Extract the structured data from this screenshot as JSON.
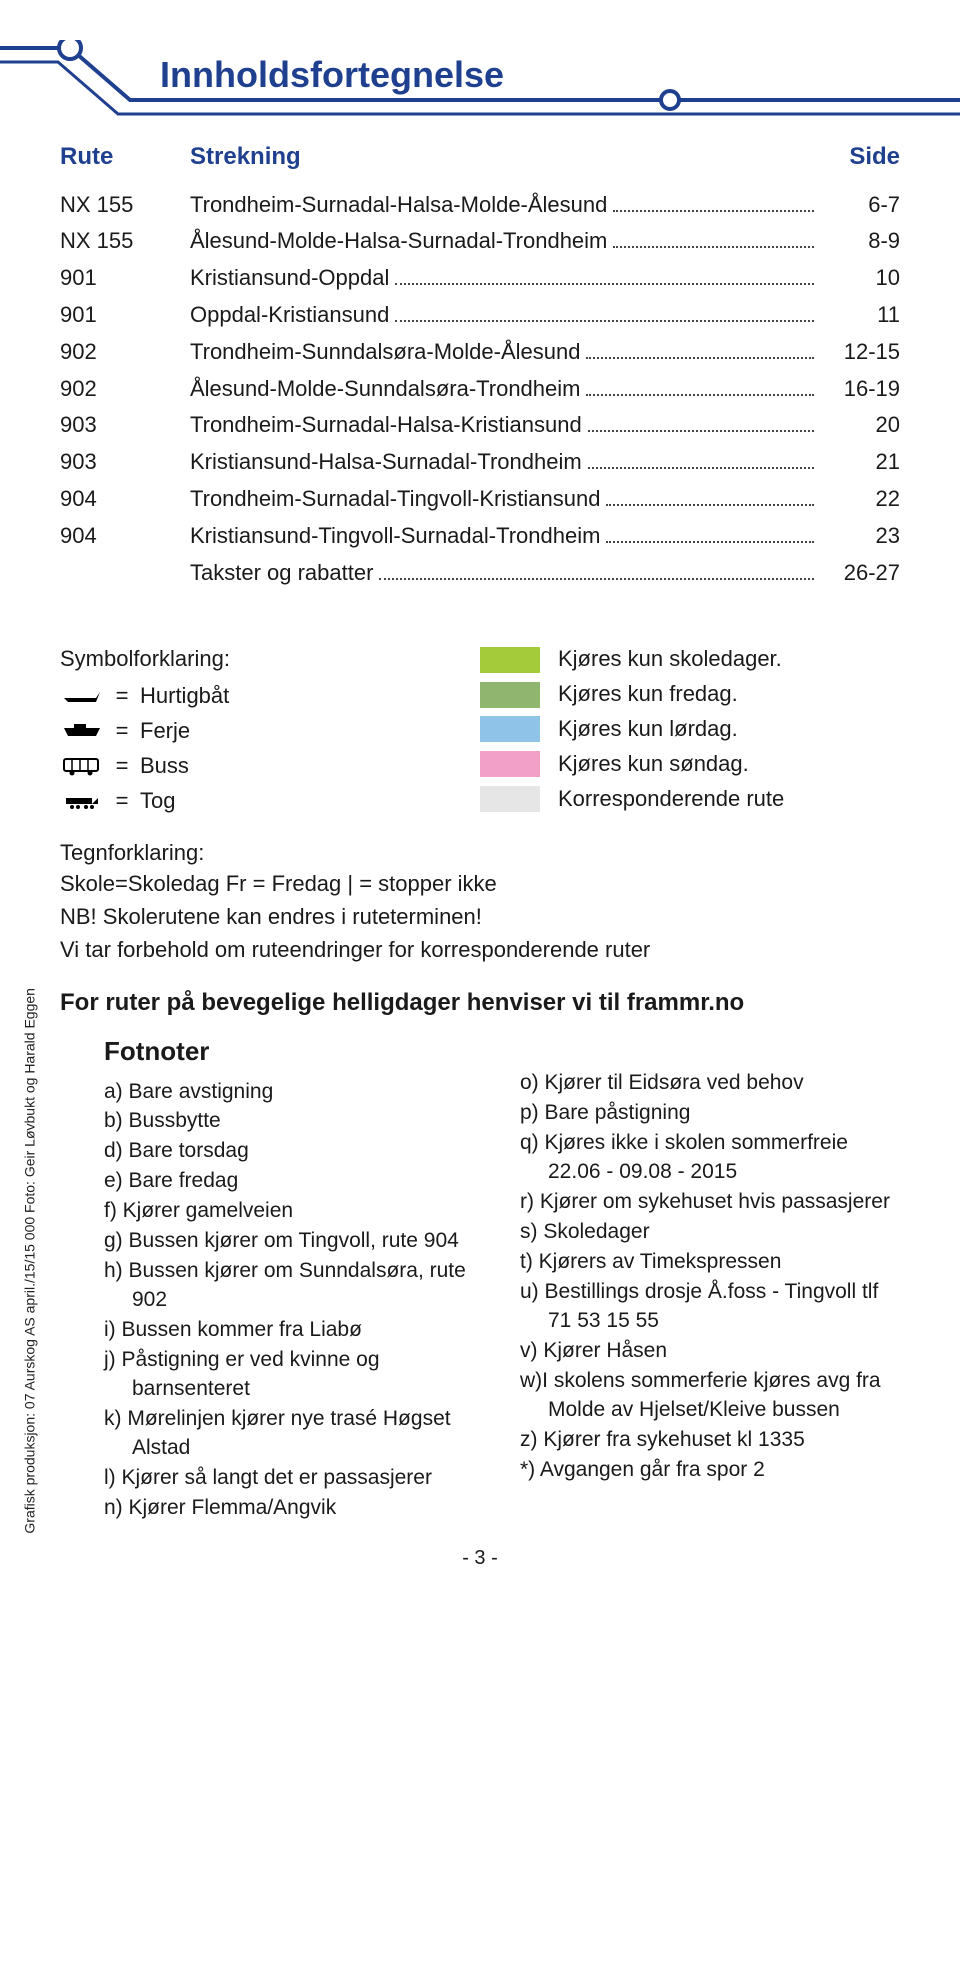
{
  "colors": {
    "brand_blue": "#1f3f8f",
    "text": "#1a1a1a",
    "swatch_schooldays": "#a4cc3a",
    "swatch_friday": "#8fb56e",
    "swatch_saturday": "#8fc3e8",
    "swatch_sunday": "#f2a0c8",
    "swatch_corresp": "#e6e6e6",
    "line_stroke": "#1f3f8f"
  },
  "header": {
    "title": "Innholdsfortegnelse"
  },
  "toc": {
    "columns": {
      "route": "Rute",
      "stretch": "Strekning",
      "page": "Side"
    },
    "rows": [
      {
        "route": "NX 155",
        "stretch": "Trondheim-Surnadal-Halsa-Molde-Ålesund",
        "page": "6-7"
      },
      {
        "route": "NX 155",
        "stretch": "Ålesund-Molde-Halsa-Surnadal-Trondheim",
        "page": "8-9"
      },
      {
        "route": "901",
        "stretch": "Kristiansund-Oppdal",
        "page": "10"
      },
      {
        "route": "901",
        "stretch": "Oppdal-Kristiansund",
        "page": "11"
      },
      {
        "route": "902",
        "stretch": "Trondheim-Sunndalsøra-Molde-Ålesund",
        "page": "12-15"
      },
      {
        "route": "902",
        "stretch": "Ålesund-Molde-Sunndalsøra-Trondheim",
        "page": "16-19"
      },
      {
        "route": "903",
        "stretch": "Trondheim-Surnadal-Halsa-Kristiansund",
        "page": "20"
      },
      {
        "route": "903",
        "stretch": "Kristiansund-Halsa-Surnadal-Trondheim",
        "page": "21"
      },
      {
        "route": "904",
        "stretch": "Trondheim-Surnadal-Tingvoll-Kristiansund",
        "page": "22"
      },
      {
        "route": "904",
        "stretch": "Kristiansund-Tingvoll-Surnadal-Trondheim",
        "page": "23"
      },
      {
        "route": "",
        "stretch": "Takster og rabatter",
        "page": "26-27"
      }
    ]
  },
  "symbolLegend": {
    "title": "Symbolforklaring:",
    "items": [
      {
        "icon": "boat",
        "label": "Hurtigbåt"
      },
      {
        "icon": "ferry",
        "label": "Ferje"
      },
      {
        "icon": "bus",
        "label": "Buss"
      },
      {
        "icon": "train",
        "label": "Tog"
      }
    ],
    "eq": "="
  },
  "colorLegend": [
    {
      "color": "#a4cc3a",
      "label": "Kjøres kun skoledager."
    },
    {
      "color": "#8fb56e",
      "label": "Kjøres kun fredag."
    },
    {
      "color": "#8fc3e8",
      "label": "Kjøres kun lørdag."
    },
    {
      "color": "#f2a0c8",
      "label": "Kjøres kun søndag."
    },
    {
      "color": "#e6e6e6",
      "label": "Korresponderende rute"
    }
  ],
  "tegn": {
    "title": "Tegnforklaring:",
    "lines": [
      "Skole=Skoledag   Fr = Fredag   | = stopper ikke",
      "NB! Skolerutene kan endres i ruteterminen!",
      "Vi tar forbehold om ruteendringer for korresponderende ruter"
    ]
  },
  "frammr": "For ruter på bevegelige helligdager henviser vi til frammr.no",
  "fotnoter": {
    "title": "Fotnoter",
    "left": [
      "a) Bare avstigning",
      "b) Bussbytte",
      "d) Bare torsdag",
      "e) Bare fredag",
      "f) Kjører gamelveien",
      "g) Bussen kjører om Tingvoll, rute 904",
      "h) Bussen kjører om Sunndalsøra, rute 902",
      "i) Bussen kommer fra Liabø",
      "j) Påstigning er ved kvinne og barnsenteret",
      "k) Mørelinjen kjører nye trasé Høgset Alstad",
      "l) Kjører så langt det er passasjerer",
      "n) Kjører Flemma/Angvik"
    ],
    "right": [
      "o) Kjører til Eidsøra ved behov",
      "p) Bare påstigning",
      "q) Kjøres ikke i skolen sommerfreie 22.06 - 09.08 - 2015",
      "r) Kjører om sykehuset hvis passasjerer",
      "s) Skoledager",
      "t) Kjørers av Timekspressen",
      "u) Bestillings drosje Å.foss - Tingvoll tlf 71 53 15 55",
      "v) Kjører Håsen",
      "w)I skolens sommerferie kjøres avg fra Molde av Hjelset/Kleive bussen",
      "z) Kjører fra sykehuset kl 1335",
      "*) Avgangen går fra spor 2"
    ]
  },
  "credit": "Grafisk produksjon: 07 Aurskog AS  april./15/15 000  Foto: Geir Løvbukt og Harald Eggen",
  "pageNumber": "- 3 -"
}
